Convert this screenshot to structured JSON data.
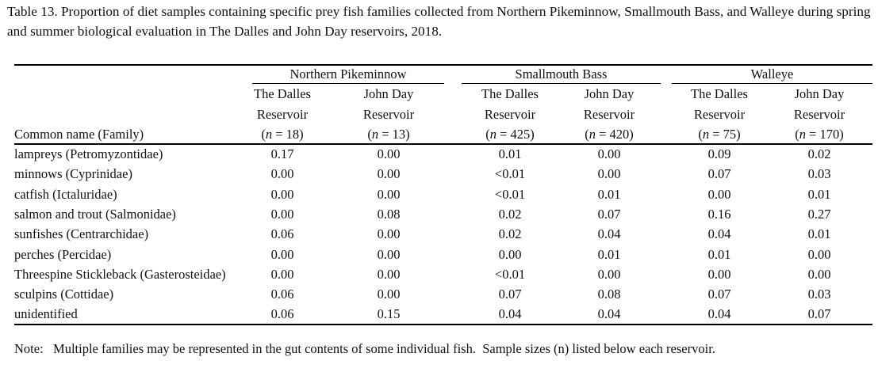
{
  "caption": "Table 13. Proportion of diet samples containing specific prey fish families collected from Northern Pikeminnow, Smallmouth Bass, and Walleye during spring and summer biological evaluation in The Dalles and John Day reservoirs, 2018.",
  "groups": [
    "Northern Pikeminnow",
    "Smallmouth Bass",
    "Walleye"
  ],
  "header": {
    "name_col": "Common name (Family)",
    "line1": [
      "The Dalles",
      "John Day",
      "The Dalles",
      "John Day",
      "The Dalles",
      "John Day"
    ],
    "line2": [
      "Reservoir",
      "Reservoir",
      "Reservoir",
      "Reservoir",
      "Reservoir",
      "Reservoir"
    ],
    "n": [
      "18",
      "13",
      "425",
      "420",
      "75",
      "170"
    ]
  },
  "rows": [
    {
      "name": "lampreys (Petromyzontidae)",
      "v": [
        "0.17",
        "0.00",
        "0.01",
        "0.00",
        "0.09",
        "0.02"
      ]
    },
    {
      "name": "minnows (Cyprinidae)",
      "v": [
        "0.00",
        "0.00",
        "<0.01",
        "0.00",
        "0.07",
        "0.03"
      ]
    },
    {
      "name": "catfish (Ictaluridae)",
      "v": [
        "0.00",
        "0.00",
        "<0.01",
        "0.01",
        "0.00",
        "0.01"
      ]
    },
    {
      "name": "salmon and trout (Salmonidae)",
      "v": [
        "0.00",
        "0.08",
        "0.02",
        "0.07",
        "0.16",
        "0.27"
      ]
    },
    {
      "name": "sunfishes (Centrarchidae)",
      "v": [
        "0.06",
        "0.00",
        "0.02",
        "0.04",
        "0.04",
        "0.01"
      ]
    },
    {
      "name": "perches (Percidae)",
      "v": [
        "0.00",
        "0.00",
        "0.00",
        "0.01",
        "0.01",
        "0.00"
      ]
    },
    {
      "name": "Threespine Stickleback (Gasterosteidae)",
      "v": [
        "0.00",
        "0.00",
        "<0.01",
        "0.00",
        "0.00",
        "0.00"
      ]
    },
    {
      "name": "sculpins (Cottidae)",
      "v": [
        "0.06",
        "0.00",
        "0.07",
        "0.08",
        "0.07",
        "0.03"
      ]
    },
    {
      "name": "unidentified",
      "v": [
        "0.06",
        "0.15",
        "0.04",
        "0.04",
        "0.04",
        "0.07"
      ]
    }
  ],
  "note": "Note:   Multiple families may be represented in the gut contents of some individual fish.  Sample sizes (n) listed below each reservoir."
}
